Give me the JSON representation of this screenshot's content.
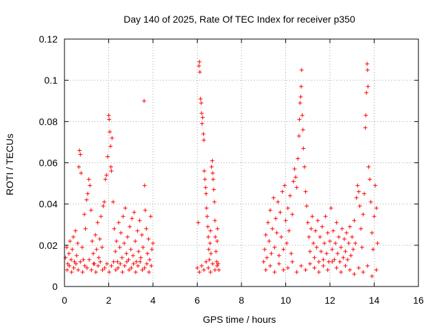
{
  "chart_data": {
    "type": "scatter",
    "title": "Day 140 of 2025, Rate Of TEC Index for receiver p350",
    "xlabel": "GPS time / hours",
    "ylabel": "ROTI / TECUs",
    "xlim": [
      0,
      16
    ],
    "ylim": [
      0,
      0.12
    ],
    "x_ticks": [
      0,
      2,
      4,
      6,
      8,
      10,
      12,
      14,
      16
    ],
    "x_tick_labels": [
      "0",
      "2",
      "4",
      "6",
      "8",
      "10",
      "12",
      "14",
      "16"
    ],
    "y_ticks": [
      0,
      0.02,
      0.04,
      0.06,
      0.08,
      0.1,
      0.12
    ],
    "y_tick_labels": [
      "0",
      "0.02",
      "0.04",
      "0.06",
      "0.08",
      "0.1",
      "0.12"
    ],
    "grid": true,
    "marker": "+",
    "color": "#ff0000",
    "series": [
      {
        "name": "ROTI",
        "points": [
          [
            0.05,
            0.014
          ],
          [
            0.1,
            0.019
          ],
          [
            0.15,
            0.011
          ],
          [
            0.2,
            0.016
          ],
          [
            0.25,
            0.022
          ],
          [
            0.3,
            0.013
          ],
          [
            0.35,
            0.018
          ],
          [
            0.4,
            0.024
          ],
          [
            0.45,
            0.012
          ],
          [
            0.5,
            0.027
          ],
          [
            0.55,
            0.015
          ],
          [
            0.6,
            0.021
          ],
          [
            0.65,
            0.058
          ],
          [
            0.68,
            0.066
          ],
          [
            0.72,
            0.064
          ],
          [
            0.75,
            0.055
          ],
          [
            0.8,
            0.019
          ],
          [
            0.85,
            0.013
          ],
          [
            0.9,
            0.035
          ],
          [
            0.95,
            0.028
          ],
          [
            1.0,
            0.042
          ],
          [
            1.05,
            0.045
          ],
          [
            1.1,
            0.052
          ],
          [
            1.15,
            0.049
          ],
          [
            1.2,
            0.037
          ],
          [
            1.25,
            0.022
          ],
          [
            1.3,
            0.016
          ],
          [
            1.35,
            0.011
          ],
          [
            1.4,
            0.025
          ],
          [
            1.45,
            0.018
          ],
          [
            1.5,
            0.031
          ],
          [
            1.55,
            0.014
          ],
          [
            1.6,
            0.023
          ],
          [
            1.65,
            0.034
          ],
          [
            1.7,
            0.019
          ],
          [
            1.75,
            0.039
          ],
          [
            1.8,
            0.041
          ],
          [
            1.85,
            0.052
          ],
          [
            1.9,
            0.054
          ],
          [
            1.95,
            0.063
          ],
          [
            2.0,
            0.083
          ],
          [
            2.02,
            0.081
          ],
          [
            2.05,
            0.075
          ],
          [
            2.08,
            0.068
          ],
          [
            2.1,
            0.058
          ],
          [
            2.12,
            0.056
          ],
          [
            2.15,
            0.072
          ],
          [
            2.2,
            0.041
          ],
          [
            2.25,
            0.028
          ],
          [
            2.3,
            0.017
          ],
          [
            2.35,
            0.022
          ],
          [
            2.4,
            0.012
          ],
          [
            2.45,
            0.031
          ],
          [
            2.5,
            0.019
          ],
          [
            2.55,
            0.026
          ],
          [
            2.6,
            0.014
          ],
          [
            2.65,
            0.034
          ],
          [
            2.7,
            0.021
          ],
          [
            2.75,
            0.038
          ],
          [
            2.8,
            0.016
          ],
          [
            2.85,
            0.024
          ],
          [
            2.9,
            0.013
          ],
          [
            2.95,
            0.029
          ],
          [
            3.0,
            0.018
          ],
          [
            3.05,
            0.033
          ],
          [
            3.1,
            0.015
          ],
          [
            3.15,
            0.036
          ],
          [
            3.2,
            0.022
          ],
          [
            3.25,
            0.012
          ],
          [
            3.3,
            0.027
          ],
          [
            3.35,
            0.017
          ],
          [
            3.4,
            0.032
          ],
          [
            3.45,
            0.014
          ],
          [
            3.5,
            0.025
          ],
          [
            3.55,
            0.019
          ],
          [
            3.6,
            0.09
          ],
          [
            3.62,
            0.049
          ],
          [
            3.65,
            0.037
          ],
          [
            3.7,
            0.028
          ],
          [
            3.75,
            0.016
          ],
          [
            3.8,
            0.023
          ],
          [
            3.85,
            0.013
          ],
          [
            3.9,
            0.034
          ],
          [
            3.95,
            0.018
          ],
          [
            4.0,
            0.021
          ],
          [
            0.12,
            0.008
          ],
          [
            0.22,
            0.01
          ],
          [
            0.32,
            0.007
          ],
          [
            0.42,
            0.009
          ],
          [
            0.52,
            0.011
          ],
          [
            0.62,
            0.008
          ],
          [
            0.72,
            0.012
          ],
          [
            0.82,
            0.007
          ],
          [
            0.92,
            0.01
          ],
          [
            1.02,
            0.009
          ],
          [
            1.12,
            0.013
          ],
          [
            1.22,
            0.008
          ],
          [
            1.32,
            0.011
          ],
          [
            1.42,
            0.007
          ],
          [
            1.52,
            0.01
          ],
          [
            1.62,
            0.012
          ],
          [
            1.72,
            0.008
          ],
          [
            1.82,
            0.009
          ],
          [
            1.92,
            0.011
          ],
          [
            2.02,
            0.007
          ],
          [
            2.12,
            0.01
          ],
          [
            2.22,
            0.012
          ],
          [
            2.32,
            0.008
          ],
          [
            2.42,
            0.009
          ],
          [
            2.52,
            0.011
          ],
          [
            2.62,
            0.007
          ],
          [
            2.72,
            0.01
          ],
          [
            2.82,
            0.012
          ],
          [
            2.92,
            0.008
          ],
          [
            3.02,
            0.009
          ],
          [
            3.12,
            0.011
          ],
          [
            3.22,
            0.007
          ],
          [
            3.32,
            0.01
          ],
          [
            3.42,
            0.012
          ],
          [
            3.52,
            0.008
          ],
          [
            3.62,
            0.009
          ],
          [
            3.72,
            0.011
          ],
          [
            3.82,
            0.007
          ],
          [
            3.92,
            0.01
          ],
          [
            6.0,
            0.009
          ],
          [
            6.05,
            0.031
          ],
          [
            6.08,
            0.107
          ],
          [
            6.1,
            0.109
          ],
          [
            6.12,
            0.104
          ],
          [
            6.15,
            0.091
          ],
          [
            6.18,
            0.089
          ],
          [
            6.2,
            0.084
          ],
          [
            6.22,
            0.079
          ],
          [
            6.25,
            0.082
          ],
          [
            6.28,
            0.074
          ],
          [
            6.3,
            0.071
          ],
          [
            6.32,
            0.056
          ],
          [
            6.35,
            0.052
          ],
          [
            6.38,
            0.048
          ],
          [
            6.4,
            0.045
          ],
          [
            6.42,
            0.038
          ],
          [
            6.45,
            0.034
          ],
          [
            6.48,
            0.029
          ],
          [
            6.5,
            0.024
          ],
          [
            6.52,
            0.018
          ],
          [
            6.55,
            0.013
          ],
          [
            6.58,
            0.021
          ],
          [
            6.6,
            0.027
          ],
          [
            6.62,
            0.016
          ],
          [
            6.65,
            0.058
          ],
          [
            6.68,
            0.061
          ],
          [
            6.7,
            0.055
          ],
          [
            6.72,
            0.052
          ],
          [
            6.75,
            0.047
          ],
          [
            6.78,
            0.041
          ],
          [
            6.8,
            0.032
          ],
          [
            6.82,
            0.024
          ],
          [
            6.85,
            0.017
          ],
          [
            6.88,
            0.012
          ],
          [
            6.9,
            0.022
          ],
          [
            6.92,
            0.028
          ],
          [
            6.95,
            0.011
          ],
          [
            6.98,
            0.008
          ],
          [
            6.1,
            0.007
          ],
          [
            6.2,
            0.01
          ],
          [
            6.3,
            0.008
          ],
          [
            6.4,
            0.012
          ],
          [
            6.5,
            0.009
          ],
          [
            6.6,
            0.007
          ],
          [
            6.7,
            0.011
          ],
          [
            6.8,
            0.008
          ],
          [
            6.9,
            0.01
          ],
          [
            9.0,
            0.012
          ],
          [
            9.05,
            0.018
          ],
          [
            9.1,
            0.025
          ],
          [
            9.15,
            0.014
          ],
          [
            9.2,
            0.031
          ],
          [
            9.25,
            0.022
          ],
          [
            9.3,
            0.037
          ],
          [
            9.35,
            0.016
          ],
          [
            9.4,
            0.028
          ],
          [
            9.45,
            0.043
          ],
          [
            9.5,
            0.019
          ],
          [
            9.55,
            0.033
          ],
          [
            9.6,
            0.026
          ],
          [
            9.65,
            0.041
          ],
          [
            9.7,
            0.015
          ],
          [
            9.75,
            0.036
          ],
          [
            9.8,
            0.024
          ],
          [
            9.85,
            0.046
          ],
          [
            9.9,
            0.018
          ],
          [
            9.95,
            0.049
          ],
          [
            10.0,
            0.032
          ],
          [
            10.05,
            0.021
          ],
          [
            10.1,
            0.038
          ],
          [
            10.15,
            0.027
          ],
          [
            10.2,
            0.044
          ],
          [
            10.25,
            0.016
          ],
          [
            10.3,
            0.035
          ],
          [
            10.35,
            0.051
          ],
          [
            10.4,
            0.057
          ],
          [
            10.45,
            0.053
          ],
          [
            10.5,
            0.048
          ],
          [
            10.55,
            0.062
          ],
          [
            10.6,
            0.073
          ],
          [
            10.62,
            0.081
          ],
          [
            10.65,
            0.089
          ],
          [
            10.68,
            0.092
          ],
          [
            10.7,
            0.097
          ],
          [
            10.72,
            0.105
          ],
          [
            10.75,
            0.083
          ],
          [
            10.78,
            0.076
          ],
          [
            10.8,
            0.067
          ],
          [
            10.85,
            0.058
          ],
          [
            10.9,
            0.046
          ],
          [
            10.95,
            0.039
          ],
          [
            11.0,
            0.031
          ],
          [
            11.05,
            0.024
          ],
          [
            11.1,
            0.017
          ],
          [
            11.15,
            0.028
          ],
          [
            11.2,
            0.034
          ],
          [
            11.25,
            0.021
          ],
          [
            11.3,
            0.014
          ],
          [
            11.35,
            0.027
          ],
          [
            11.4,
            0.019
          ],
          [
            11.45,
            0.032
          ],
          [
            11.5,
            0.012
          ],
          [
            11.55,
            0.024
          ],
          [
            11.6,
            0.017
          ],
          [
            11.65,
            0.029
          ],
          [
            11.7,
            0.013
          ],
          [
            11.75,
            0.021
          ],
          [
            11.8,
            0.034
          ],
          [
            11.85,
            0.016
          ],
          [
            11.9,
            0.026
          ],
          [
            11.95,
            0.012
          ],
          [
            12.0,
            0.022
          ],
          [
            12.05,
            0.038
          ],
          [
            12.1,
            0.018
          ],
          [
            12.15,
            0.027
          ],
          [
            12.2,
            0.013
          ],
          [
            12.25,
            0.021
          ],
          [
            12.3,
            0.031
          ],
          [
            12.35,
            0.016
          ],
          [
            12.4,
            0.024
          ],
          [
            12.45,
            0.012
          ],
          [
            12.5,
            0.019
          ],
          [
            12.55,
            0.028
          ],
          [
            12.6,
            0.014
          ],
          [
            12.65,
            0.023
          ],
          [
            12.7,
            0.017
          ],
          [
            12.75,
            0.026
          ],
          [
            12.8,
            0.013
          ],
          [
            12.85,
            0.021
          ],
          [
            12.9,
            0.029
          ],
          [
            12.95,
            0.015
          ],
          [
            13.0,
            0.024
          ],
          [
            13.05,
            0.018
          ],
          [
            13.1,
            0.032
          ],
          [
            13.15,
            0.021
          ],
          [
            13.2,
            0.043
          ],
          [
            13.25,
            0.049
          ],
          [
            13.3,
            0.046
          ],
          [
            13.35,
            0.039
          ],
          [
            13.4,
            0.028
          ],
          [
            13.45,
            0.019
          ],
          [
            13.5,
            0.035
          ],
          [
            13.55,
            0.045
          ],
          [
            13.6,
            0.077
          ],
          [
            13.62,
            0.083
          ],
          [
            13.65,
            0.094
          ],
          [
            13.68,
            0.108
          ],
          [
            13.7,
            0.105
          ],
          [
            13.72,
            0.097
          ],
          [
            13.75,
            0.058
          ],
          [
            13.8,
            0.052
          ],
          [
            13.85,
            0.041
          ],
          [
            13.9,
            0.026
          ],
          [
            13.95,
            0.018
          ],
          [
            14.0,
            0.034
          ],
          [
            14.05,
            0.049
          ],
          [
            14.1,
            0.038
          ],
          [
            14.15,
            0.021
          ],
          [
            9.1,
            0.008
          ],
          [
            9.3,
            0.01
          ],
          [
            9.5,
            0.007
          ],
          [
            9.7,
            0.011
          ],
          [
            9.9,
            0.008
          ],
          [
            10.1,
            0.009
          ],
          [
            10.3,
            0.012
          ],
          [
            10.5,
            0.007
          ],
          [
            10.7,
            0.01
          ],
          [
            10.9,
            0.008
          ],
          [
            11.1,
            0.011
          ],
          [
            11.3,
            0.009
          ],
          [
            11.5,
            0.007
          ],
          [
            11.7,
            0.01
          ],
          [
            11.9,
            0.008
          ],
          [
            12.1,
            0.012
          ],
          [
            12.3,
            0.009
          ],
          [
            12.5,
            0.007
          ],
          [
            12.7,
            0.01
          ],
          [
            12.9,
            0.008
          ],
          [
            13.1,
            0.006
          ],
          [
            13.3,
            0.009
          ],
          [
            13.5,
            0.007
          ],
          [
            13.7,
            0.01
          ],
          [
            13.9,
            0.005
          ],
          [
            14.1,
            0.008
          ]
        ]
      }
    ]
  }
}
